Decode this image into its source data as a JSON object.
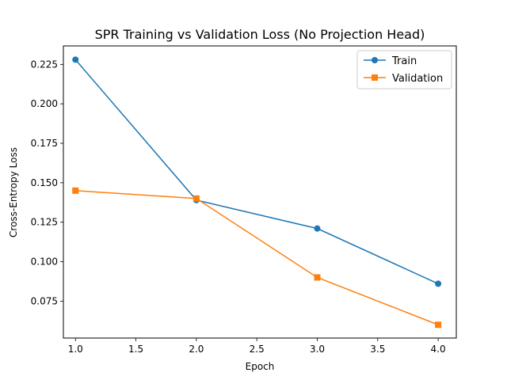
{
  "chart_data": {
    "type": "line",
    "title": "SPR Training vs Validation Loss (No Projection Head)",
    "xlabel": "Epoch",
    "ylabel": "Cross-Entropy Loss",
    "x": [
      1.0,
      2.0,
      3.0,
      4.0
    ],
    "xlim": [
      0.9,
      4.15
    ],
    "ylim": [
      0.0516,
      0.2367
    ],
    "xticks": [
      1.0,
      1.5,
      2.0,
      2.5,
      3.0,
      3.5,
      4.0
    ],
    "xtick_labels": [
      "1.0",
      "1.5",
      "2.0",
      "2.5",
      "3.0",
      "3.5",
      "4.0"
    ],
    "yticks": [
      0.075,
      0.1,
      0.125,
      0.15,
      0.175,
      0.2,
      0.225
    ],
    "ytick_labels": [
      "0.075",
      "0.100",
      "0.125",
      "0.150",
      "0.175",
      "0.200",
      "0.225"
    ],
    "grid": false,
    "legend_position": "top-right",
    "series": [
      {
        "name": "Train",
        "values": [
          0.228,
          0.139,
          0.121,
          0.086
        ],
        "color": "#1f77b4",
        "marker": "circle"
      },
      {
        "name": "Validation",
        "values": [
          0.145,
          0.14,
          0.09,
          0.06
        ],
        "color": "#ff7f0e",
        "marker": "square"
      }
    ]
  }
}
